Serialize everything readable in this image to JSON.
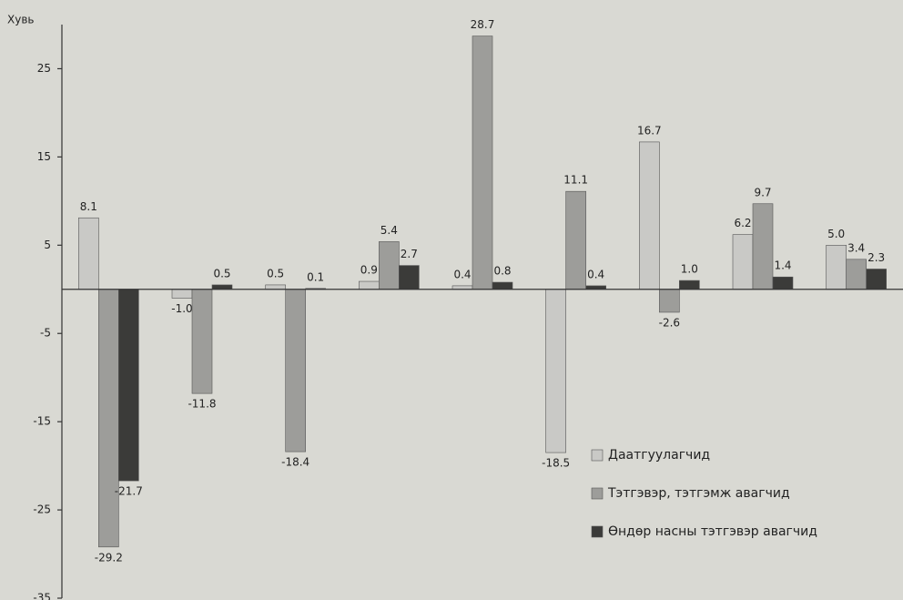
{
  "chart_data": {
    "type": "bar",
    "y_label": "Хувь",
    "categories": [
      null,
      null,
      null,
      null,
      null,
      null,
      null,
      null,
      null
    ],
    "series": [
      {
        "name": "Даатгуулагчид",
        "color": "#c9c9c6",
        "values": [
          8.1,
          -1.0,
          0.5,
          0.9,
          0.4,
          -18.5,
          16.7,
          6.2,
          5.0
        ],
        "value_labels": [
          "8.1",
          "-1.0",
          "0.5",
          "0.9",
          "0.4",
          "-18.5",
          "16.7",
          "6.2",
          "5.0"
        ]
      },
      {
        "name": "Тэтгэвэр, тэтгэмж авагчид",
        "color": "#9d9d9a",
        "values": [
          -29.2,
          -11.8,
          -18.4,
          5.4,
          28.7,
          11.1,
          -2.6,
          9.7,
          3.4
        ],
        "value_labels": [
          "-29.2",
          "-11.8",
          "-18.4",
          "5.4",
          "28.7",
          "11.1",
          "-2.6",
          "9.7",
          "3.4"
        ]
      },
      {
        "name": "Өндөр насны тэтгэвэр авагчид",
        "color": "#3b3b39",
        "values": [
          -21.7,
          0.5,
          0.1,
          2.7,
          0.8,
          0.4,
          1.0,
          1.4,
          2.3
        ],
        "value_labels": [
          "-21.7",
          "0.5",
          "0.1",
          "2.7",
          "0.8",
          "0.4",
          "1.0",
          "1.4",
          "2.3"
        ]
      }
    ],
    "ylim": [
      -35,
      30
    ],
    "yticks": [
      -35,
      -25,
      -15,
      -5,
      5,
      15,
      25
    ],
    "grid": false,
    "legend": "lower right"
  }
}
